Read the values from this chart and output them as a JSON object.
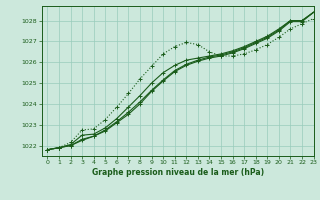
{
  "title": "Graphe pression niveau de la mer (hPa)",
  "bg_color": "#cce8dc",
  "grid_color": "#99ccbb",
  "line_color": "#1a5c1a",
  "xlim": [
    -0.5,
    23
  ],
  "ylim": [
    1021.5,
    1028.7
  ],
  "yticks": [
    1022,
    1023,
    1024,
    1025,
    1026,
    1027,
    1028
  ],
  "xticks": [
    0,
    1,
    2,
    3,
    4,
    5,
    6,
    7,
    8,
    9,
    10,
    11,
    12,
    13,
    14,
    15,
    16,
    17,
    18,
    19,
    20,
    21,
    22,
    23
  ],
  "line1": [
    1021.8,
    1021.9,
    1022.0,
    1022.25,
    1022.45,
    1022.7,
    1023.1,
    1023.5,
    1024.0,
    1024.6,
    1025.1,
    1025.55,
    1025.85,
    1026.05,
    1026.2,
    1026.3,
    1026.45,
    1026.65,
    1026.9,
    1027.15,
    1027.5,
    1027.95,
    1027.95,
    1028.4
  ],
  "line2": [
    1021.8,
    1021.9,
    1022.0,
    1022.3,
    1022.45,
    1022.75,
    1023.15,
    1023.6,
    1024.1,
    1024.65,
    1025.15,
    1025.6,
    1025.9,
    1026.1,
    1026.25,
    1026.35,
    1026.5,
    1026.7,
    1026.95,
    1027.2,
    1027.55,
    1028.0,
    1028.0,
    1028.4
  ],
  "line3": [
    1021.8,
    1021.9,
    1022.05,
    1022.5,
    1022.55,
    1022.85,
    1023.3,
    1023.85,
    1024.4,
    1025.0,
    1025.5,
    1025.85,
    1026.1,
    1026.2,
    1026.3,
    1026.4,
    1026.55,
    1026.75,
    1027.0,
    1027.25,
    1027.6,
    1028.0,
    1028.0,
    1028.4
  ],
  "line4_dotted": [
    1021.8,
    1021.9,
    1022.15,
    1022.75,
    1022.8,
    1023.25,
    1023.85,
    1024.5,
    1025.2,
    1025.8,
    1026.4,
    1026.75,
    1026.95,
    1026.85,
    1026.5,
    1026.3,
    1026.3,
    1026.4,
    1026.6,
    1026.85,
    1027.2,
    1027.6,
    1027.85,
    1028.1
  ]
}
